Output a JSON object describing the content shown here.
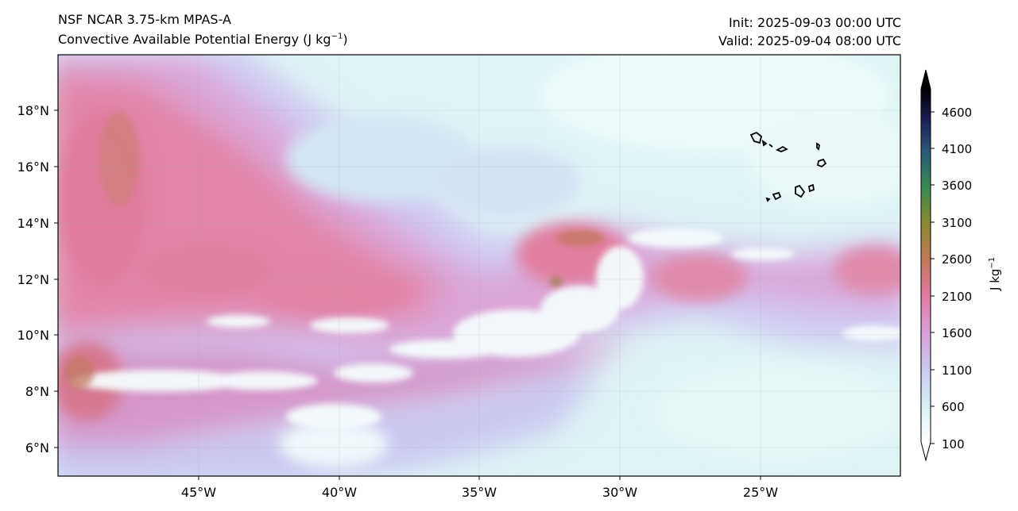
{
  "titles": {
    "model": "NSF NCAR 3.75-km MPAS-A",
    "field_name": "Convective Available Potential Energy (J kg",
    "field_unit_exp": "−1",
    "field_close": ")",
    "init": "Init: 2025-09-03 00:00 UTC",
    "valid": "Valid: 2025-09-04 08:00 UTC"
  },
  "map": {
    "lon_range": [
      -50.3,
      -20.0
    ],
    "lat_range": [
      5.0,
      20.0
    ],
    "lon_ticks": [
      "45°W",
      "40°W",
      "35°W",
      "30°W",
      "25°W"
    ],
    "lat_ticks": [
      "18°N",
      "16°N",
      "14°N",
      "12°N",
      "10°N",
      "8°N",
      "6°N"
    ],
    "gridlines": true,
    "coastlines": "Cabo Verde islands",
    "colormap": [
      "#ffffff",
      "#d6eef4",
      "#c8c8f0",
      "#d9a0d8",
      "#e07aa0",
      "#c07858",
      "#8a8a30",
      "#3a8a50",
      "#203a70",
      "#000000"
    ]
  },
  "colorbar": {
    "label": "J kg",
    "label_exp": "−1",
    "range": [
      100,
      5000
    ],
    "extend": "both",
    "ticks": [
      "4600",
      "4100",
      "3600",
      "3100",
      "2600",
      "2100",
      "1600",
      "1100",
      "600",
      "100"
    ]
  }
}
